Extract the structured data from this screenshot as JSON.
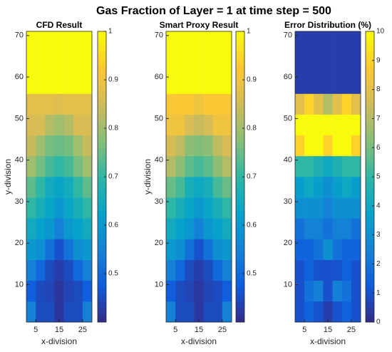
{
  "title": "Gas Fraction of Layer = 1 at time step = 500",
  "chart_data": [
    {
      "type": "heatmap",
      "title": "CFD Result",
      "xlabel": "x-division",
      "ylabel": "y-division",
      "colormap": "parula",
      "xbins": [
        1,
        5,
        9,
        13,
        17,
        21,
        25,
        29
      ],
      "ybins": [
        1,
        6,
        11,
        16,
        21,
        26,
        31,
        36,
        41,
        46,
        51,
        56,
        71
      ],
      "xlim": [
        1,
        29
      ],
      "ylim": [
        1,
        71
      ],
      "xticks": [
        5,
        15,
        25
      ],
      "yticks": [
        10,
        20,
        30,
        40,
        50,
        60,
        70
      ],
      "clim": [
        0.4,
        1
      ],
      "cticks": [
        0.5,
        0.6,
        0.7,
        0.8,
        0.9,
        1
      ],
      "z": [
        [
          0.55,
          0.45,
          0.45,
          0.42,
          0.45,
          0.45,
          0.55
        ],
        [
          0.48,
          0.45,
          0.44,
          0.42,
          0.44,
          0.45,
          0.48
        ],
        [
          0.55,
          0.5,
          0.45,
          0.43,
          0.45,
          0.5,
          0.55
        ],
        [
          0.6,
          0.58,
          0.52,
          0.46,
          0.52,
          0.58,
          0.6
        ],
        [
          0.65,
          0.62,
          0.6,
          0.55,
          0.6,
          0.62,
          0.65
        ],
        [
          0.7,
          0.66,
          0.63,
          0.6,
          0.63,
          0.66,
          0.7
        ],
        [
          0.74,
          0.7,
          0.65,
          0.63,
          0.65,
          0.7,
          0.74
        ],
        [
          0.8,
          0.76,
          0.72,
          0.7,
          0.72,
          0.76,
          0.8
        ],
        [
          0.84,
          0.8,
          0.76,
          0.75,
          0.76,
          0.8,
          0.84
        ],
        [
          0.86,
          0.86,
          0.82,
          0.8,
          0.82,
          0.86,
          0.86
        ],
        [
          0.88,
          0.88,
          0.88,
          0.87,
          0.88,
          0.88,
          0.88
        ],
        [
          1,
          1,
          1,
          1,
          1,
          1,
          1
        ]
      ]
    },
    {
      "type": "heatmap",
      "title": "Smart Proxy Result",
      "xlabel": "x-division",
      "ylabel": "y-division",
      "colormap": "parula",
      "xbins": [
        1,
        5,
        9,
        13,
        17,
        21,
        25,
        29
      ],
      "ybins": [
        1,
        6,
        11,
        16,
        21,
        26,
        31,
        36,
        41,
        46,
        51,
        56,
        71
      ],
      "xlim": [
        1,
        29
      ],
      "ylim": [
        1,
        71
      ],
      "xticks": [
        5,
        15,
        25
      ],
      "yticks": [
        10,
        20,
        30,
        40,
        50,
        60,
        70
      ],
      "clim": [
        0.4,
        1
      ],
      "cticks": [
        0.5,
        0.6,
        0.7,
        0.8,
        0.9,
        1
      ],
      "z": [
        [
          0.55,
          0.45,
          0.45,
          0.42,
          0.45,
          0.45,
          0.55
        ],
        [
          0.48,
          0.45,
          0.44,
          0.42,
          0.44,
          0.45,
          0.48
        ],
        [
          0.55,
          0.5,
          0.45,
          0.43,
          0.45,
          0.5,
          0.55
        ],
        [
          0.6,
          0.58,
          0.52,
          0.46,
          0.52,
          0.58,
          0.6
        ],
        [
          0.65,
          0.62,
          0.6,
          0.55,
          0.6,
          0.62,
          0.65
        ],
        [
          0.7,
          0.66,
          0.63,
          0.6,
          0.63,
          0.66,
          0.7
        ],
        [
          0.75,
          0.72,
          0.66,
          0.64,
          0.66,
          0.72,
          0.75
        ],
        [
          0.82,
          0.78,
          0.74,
          0.72,
          0.74,
          0.78,
          0.82
        ],
        [
          0.86,
          0.83,
          0.78,
          0.77,
          0.78,
          0.83,
          0.86
        ],
        [
          0.9,
          0.9,
          0.86,
          0.84,
          0.86,
          0.9,
          0.9
        ],
        [
          0.92,
          0.92,
          0.92,
          0.9,
          0.92,
          0.92,
          0.92
        ],
        [
          1,
          1,
          1,
          1,
          1,
          1,
          1
        ]
      ]
    },
    {
      "type": "heatmap",
      "title": "Error Distribution (%)",
      "xlabel": "x-division",
      "colormap": "parula",
      "xbins": [
        1,
        5,
        9,
        13,
        17,
        21,
        25,
        29
      ],
      "ybins": [
        1,
        6,
        11,
        16,
        21,
        26,
        31,
        36,
        41,
        46,
        51,
        56,
        71
      ],
      "xlim": [
        1,
        29
      ],
      "ylim": [
        1,
        71
      ],
      "xticks": [
        5,
        15,
        25
      ],
      "yticks": [
        10,
        20,
        30,
        40,
        50,
        60,
        70
      ],
      "clim": [
        0,
        10
      ],
      "cticks": [
        0,
        1,
        2,
        3,
        4,
        5,
        6,
        7,
        8,
        9,
        10
      ],
      "z": [
        [
          1,
          1.5,
          1,
          0.5,
          1,
          1.5,
          1
        ],
        [
          1,
          2,
          2.5,
          1,
          2.5,
          2,
          1
        ],
        [
          1,
          1.5,
          1,
          1,
          1,
          1.5,
          1
        ],
        [
          1.5,
          1.5,
          2,
          3,
          2,
          1.5,
          1.5
        ],
        [
          2,
          2.5,
          2.5,
          2,
          2.5,
          2.5,
          2
        ],
        [
          3,
          3,
          3,
          2.5,
          3,
          3,
          3
        ],
        [
          3.5,
          4,
          3.5,
          3,
          3.5,
          4,
          3.5
        ],
        [
          5,
          5,
          4.5,
          4,
          4.5,
          5,
          5
        ],
        [
          9,
          10,
          10,
          9,
          10,
          10,
          9
        ],
        [
          10,
          10,
          10,
          10,
          10,
          10,
          10
        ],
        [
          8,
          9,
          8,
          7,
          8,
          9,
          8
        ],
        [
          0.5,
          0.5,
          0.5,
          0.5,
          0.5,
          0.5,
          0.5
        ]
      ]
    }
  ]
}
